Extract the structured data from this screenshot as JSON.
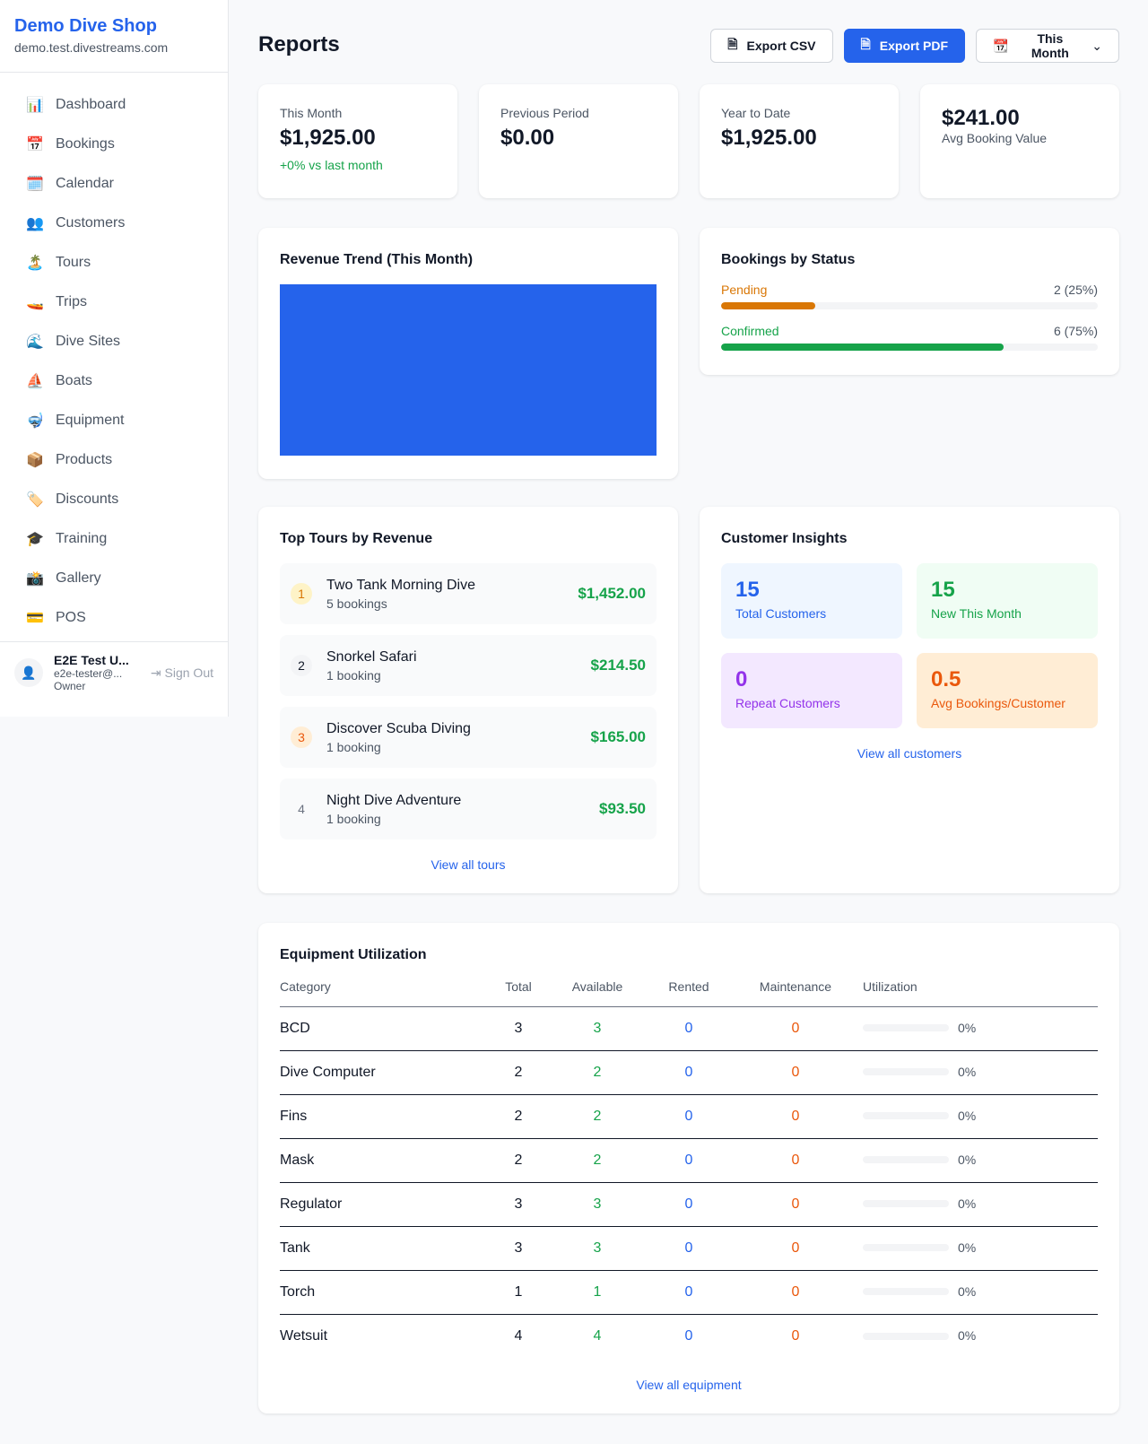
{
  "sidebar": {
    "brand": "Demo Dive Shop",
    "url": "demo.test.divestreams.com",
    "items": [
      {
        "icon": "📊",
        "label": "Dashboard"
      },
      {
        "icon": "📅",
        "label": "Bookings"
      },
      {
        "icon": "🗓️",
        "label": "Calendar"
      },
      {
        "icon": "👥",
        "label": "Customers"
      },
      {
        "icon": "🏝️",
        "label": "Tours"
      },
      {
        "icon": "🚤",
        "label": "Trips"
      },
      {
        "icon": "🌊",
        "label": "Dive Sites"
      },
      {
        "icon": "⛵",
        "label": "Boats"
      },
      {
        "icon": "🤿",
        "label": "Equipment"
      },
      {
        "icon": "📦",
        "label": "Products"
      },
      {
        "icon": "🏷️",
        "label": "Discounts"
      },
      {
        "icon": "🎓",
        "label": "Training"
      },
      {
        "icon": "📸",
        "label": "Gallery"
      },
      {
        "icon": "💳",
        "label": "POS"
      }
    ],
    "user": {
      "name": "E2E Test U...",
      "email": "e2e-tester@...",
      "role": "Owner",
      "sign_out": "Sign Out"
    }
  },
  "header": {
    "title": "Reports",
    "export_csv": "Export CSV",
    "export_pdf": "Export PDF",
    "period": "This Month"
  },
  "stats": [
    {
      "label": "This Month",
      "value": "$1,925.00",
      "note": "+0% vs last month"
    },
    {
      "label": "Previous Period",
      "value": "$0.00"
    },
    {
      "label": "Year to Date",
      "value": "$1,925.00"
    },
    {
      "value": "$241.00",
      "label": "Avg Booking Value"
    }
  ],
  "revenue": {
    "title": "Revenue Trend (This Month)",
    "color": "#2563eb"
  },
  "status": {
    "title": "Bookings by Status",
    "items": [
      {
        "label": "Pending",
        "value": "2 (25%)",
        "percent": 25,
        "color": "#d97706"
      },
      {
        "label": "Confirmed",
        "value": "6 (75%)",
        "percent": 75,
        "color": "#16a34a"
      }
    ]
  },
  "tours": {
    "title": "Top Tours by Revenue",
    "items": [
      {
        "rank": "1",
        "name": "Two Tank Morning Dive",
        "bookings": "5 bookings",
        "revenue": "$1,452.00"
      },
      {
        "rank": "2",
        "name": "Snorkel Safari",
        "bookings": "1 booking",
        "revenue": "$214.50"
      },
      {
        "rank": "3",
        "name": "Discover Scuba Diving",
        "bookings": "1 booking",
        "revenue": "$165.00"
      },
      {
        "rank": "4",
        "name": "Night Dive Adventure",
        "bookings": "1 booking",
        "revenue": "$93.50"
      }
    ],
    "link": "View all tours"
  },
  "insights": {
    "title": "Customer Insights",
    "items": [
      {
        "value": "15",
        "label": "Total Customers"
      },
      {
        "value": "15",
        "label": "New This Month"
      },
      {
        "value": "0",
        "label": "Repeat Customers"
      },
      {
        "value": "0.5",
        "label": "Avg Bookings/Customer"
      }
    ],
    "link": "View all customers"
  },
  "equipment": {
    "title": "Equipment Utilization",
    "columns": [
      "Category",
      "Total",
      "Available",
      "Rented",
      "Maintenance",
      "Utilization"
    ],
    "rows": [
      [
        "BCD",
        "3",
        "3",
        "0",
        "0",
        "0%"
      ],
      [
        "Dive Computer",
        "2",
        "2",
        "0",
        "0",
        "0%"
      ],
      [
        "Fins",
        "2",
        "2",
        "0",
        "0",
        "0%"
      ],
      [
        "Mask",
        "2",
        "2",
        "0",
        "0",
        "0%"
      ],
      [
        "Regulator",
        "3",
        "3",
        "0",
        "0",
        "0%"
      ],
      [
        "Tank",
        "3",
        "3",
        "0",
        "0",
        "0%"
      ],
      [
        "Torch",
        "1",
        "1",
        "0",
        "0",
        "0%"
      ],
      [
        "Wetsuit",
        "4",
        "4",
        "0",
        "0",
        "0%"
      ]
    ],
    "link": "View all equipment"
  }
}
